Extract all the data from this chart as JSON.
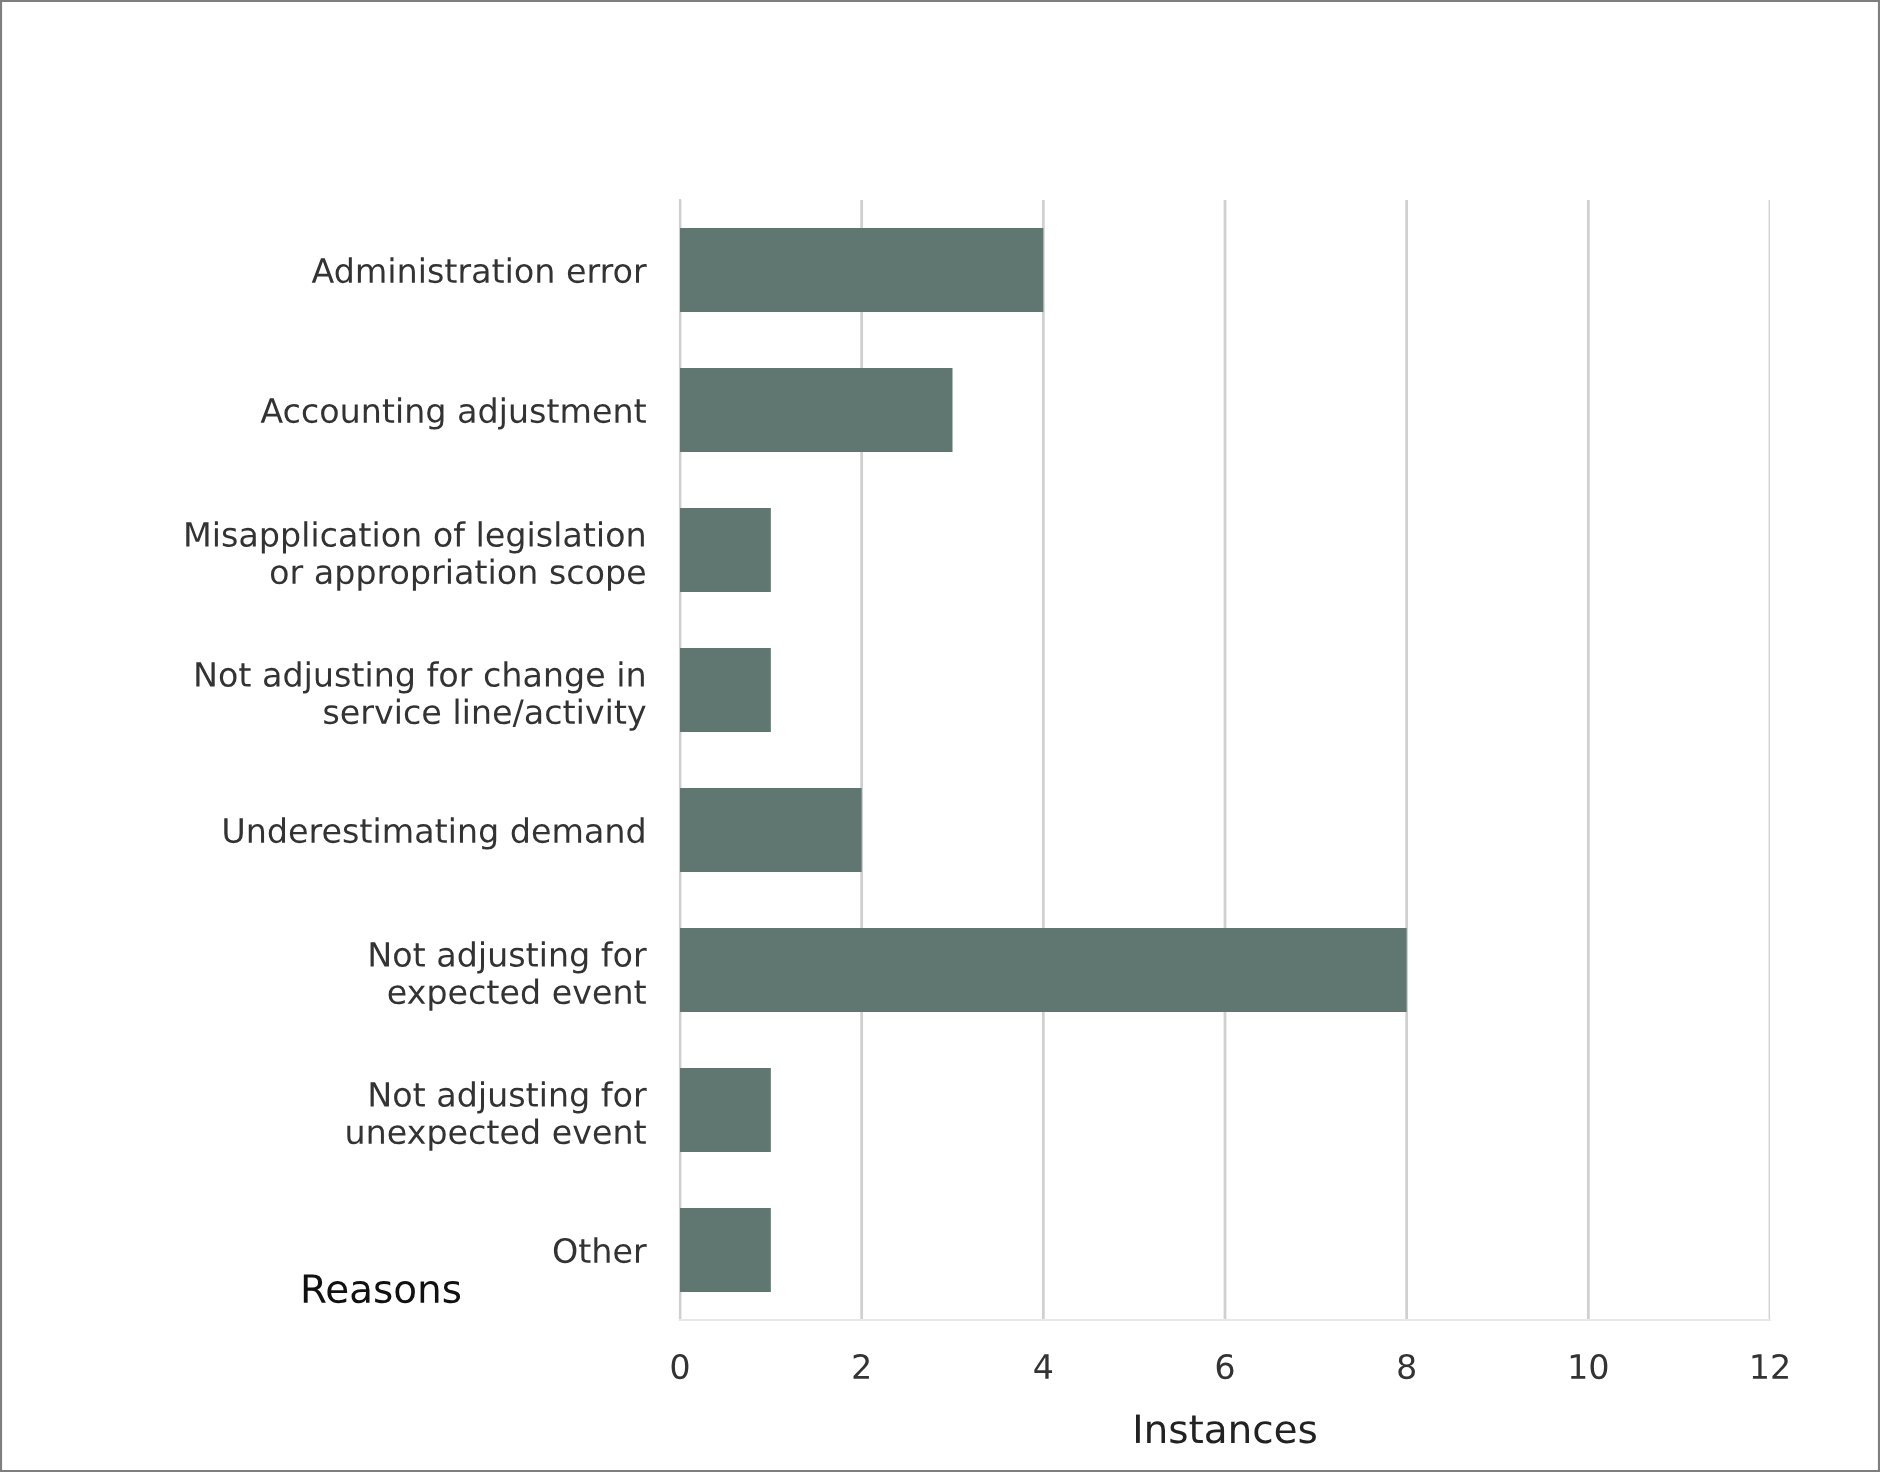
{
  "chart_data": {
    "type": "bar",
    "orientation": "horizontal",
    "ylabel": "Reasons",
    "xlabel": "Instances",
    "categories": [
      "Administration error",
      "Accounting adjustment",
      "Misapplication of legislation\nor appropriation scope",
      "Not adjusting for change in\nservice line/activity",
      "Underestimating demand",
      "Not adjusting for\nexpected event",
      "Not adjusting for\nunexpected event",
      "Other"
    ],
    "values": [
      4,
      3,
      1,
      1,
      2,
      8,
      1,
      1
    ],
    "color": "#5f7770",
    "xlim": [
      0,
      12
    ],
    "xticks": [
      0,
      2,
      4,
      6,
      8,
      10,
      12
    ],
    "grid": "x",
    "legend": false
  }
}
